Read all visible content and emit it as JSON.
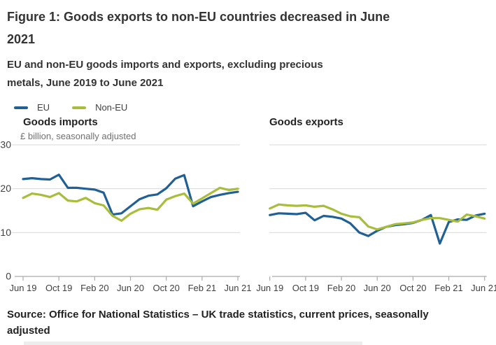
{
  "figure": {
    "title": "Figure 1: Goods exports to non-EU countries decreased in June 2021",
    "subtitle": "EU and non-EU goods imports and exports, excluding precious metals, June 2019 to June 2021",
    "source": "Source: Office for National Statistics – UK trade statistics, current prices, seasonally adjusted"
  },
  "legend": [
    {
      "label": "EU",
      "color": "#206095"
    },
    {
      "label": "Non-EU",
      "color": "#a8bd3a"
    }
  ],
  "colors": {
    "eu_line": "#206095",
    "non_eu_line": "#a8bd3a",
    "gridline": "#d9d9d9",
    "axis": "#ababab",
    "tick_text": "#414042",
    "unit_text": "#707071",
    "title_text": "#333333"
  },
  "chart_data": [
    {
      "type": "line",
      "title": "Goods imports",
      "unit_label": "£ billion, seasonally adjusted",
      "x_tick_labels": [
        "Jun 19",
        "Oct 19",
        "Feb 20",
        "Jun 20",
        "Oct 20",
        "Feb 21",
        "Jun 21"
      ],
      "months": [
        "Jun 19",
        "Jul 19",
        "Aug 19",
        "Sep 19",
        "Oct 19",
        "Nov 19",
        "Dec 19",
        "Jan 20",
        "Feb 20",
        "Mar 20",
        "Apr 20",
        "May 20",
        "Jun 20",
        "Jul 20",
        "Aug 20",
        "Sep 20",
        "Oct 20",
        "Nov 20",
        "Dec 20",
        "Jan 21",
        "Feb 21",
        "Mar 21",
        "Apr 21",
        "May 21",
        "Jun 21"
      ],
      "ylim": [
        0,
        30
      ],
      "yticks": [
        0,
        10,
        20,
        30
      ],
      "show_y_tick_labels": true,
      "grid": true,
      "series": [
        {
          "name": "EU",
          "color": "#206095",
          "values": [
            22.2,
            22.4,
            22.2,
            22.1,
            23.2,
            20.2,
            20.2,
            20.0,
            19.8,
            19.1,
            14.1,
            14.4,
            16.0,
            17.6,
            18.4,
            18.7,
            20.1,
            22.3,
            23.1,
            16.0,
            17.1,
            18.1,
            18.6,
            19.0,
            19.3
          ]
        },
        {
          "name": "Non-EU",
          "color": "#a8bd3a",
          "values": [
            17.9,
            18.9,
            18.6,
            18.1,
            19.0,
            17.3,
            17.1,
            17.9,
            16.7,
            16.2,
            13.8,
            12.7,
            14.3,
            15.3,
            15.6,
            15.2,
            17.5,
            18.3,
            18.9,
            16.6,
            17.8,
            19.0,
            20.2,
            19.7,
            20.0
          ]
        }
      ]
    },
    {
      "type": "line",
      "title": "Goods exports",
      "unit_label": "",
      "x_tick_labels": [
        "Jun 19",
        "Oct 19",
        "Feb 20",
        "Jun 20",
        "Oct 20",
        "Feb 21",
        "Jun 21"
      ],
      "months": [
        "Jun 19",
        "Jul 19",
        "Aug 19",
        "Sep 19",
        "Oct 19",
        "Nov 19",
        "Dec 19",
        "Jan 20",
        "Feb 20",
        "Mar 20",
        "Apr 20",
        "May 20",
        "Jun 20",
        "Jul 20",
        "Aug 20",
        "Sep 20",
        "Oct 20",
        "Nov 20",
        "Dec 20",
        "Jan 21",
        "Feb 21",
        "Mar 21",
        "Apr 21",
        "May 21",
        "Jun 21"
      ],
      "ylim": [
        0,
        30
      ],
      "yticks": [
        0,
        10,
        20,
        30
      ],
      "show_y_tick_labels": false,
      "grid": true,
      "series": [
        {
          "name": "EU",
          "color": "#206095",
          "values": [
            14.0,
            14.4,
            14.3,
            14.2,
            14.5,
            12.8,
            13.8,
            13.6,
            13.2,
            12.1,
            10.0,
            9.2,
            10.4,
            11.3,
            11.7,
            11.9,
            12.2,
            12.9,
            14.0,
            7.5,
            12.4,
            13.0,
            12.9,
            13.9,
            14.3
          ]
        },
        {
          "name": "Non-EU",
          "color": "#a8bd3a",
          "values": [
            15.5,
            16.4,
            16.2,
            16.1,
            16.2,
            15.9,
            16.1,
            15.3,
            14.3,
            13.7,
            13.5,
            11.4,
            10.7,
            11.3,
            11.9,
            12.1,
            12.3,
            12.9,
            13.3,
            13.3,
            12.9,
            12.5,
            14.1,
            13.7,
            13.2
          ]
        }
      ]
    }
  ]
}
